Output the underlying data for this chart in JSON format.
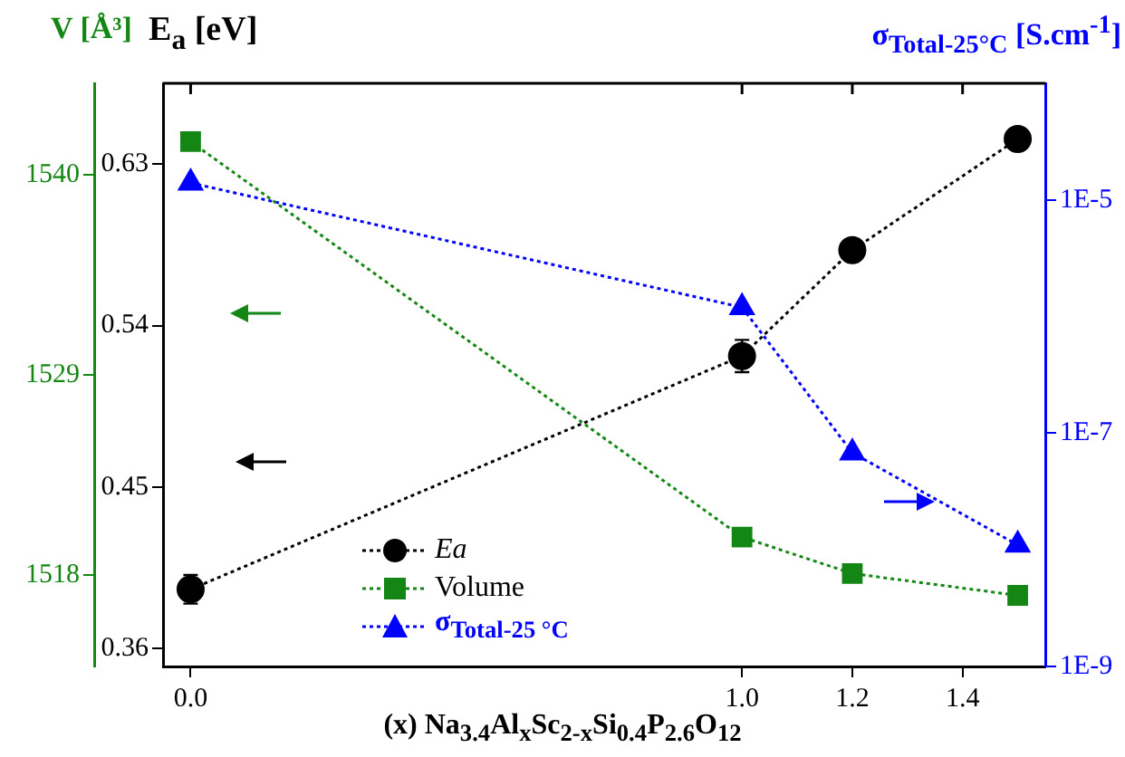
{
  "chart_data": {
    "type": "line",
    "ylabel": "E$_{a}$ [eV]",
    "y3label": "V [Å³]",
    "y2label": "σ$_{Total-25°C}$ [S.cm$^{-1}$]",
    "xlabel": "(x) Na$_{3.4}$Al$_{x}$Sc$_{2-x}$Si$_{0.4}$P$_{2.6}$O$_{12}$",
    "x": [
      0,
      1.0,
      1.2,
      1.5
    ],
    "xlim": [
      -0.05,
      1.55
    ],
    "xticks": [
      {
        "value": 0,
        "label": "0.0"
      },
      {
        "value": 1,
        "label": "1.0"
      },
      {
        "value": 1.2,
        "label": "1.2"
      },
      {
        "value": 1.4,
        "label": "1.4"
      }
    ],
    "ylim": [
      0.35,
      0.675
    ],
    "yticks": [
      0.36,
      0.45,
      0.54,
      0.63
    ],
    "y3lim": [
      1513,
      1545
    ],
    "y3ticks": [
      1518,
      1529,
      1540
    ],
    "y2lim": [
      1e-09,
      0.0001
    ],
    "y2ticks": [
      {
        "value": 1e-09,
        "label": "1E-9"
      },
      {
        "value": 1e-07,
        "label": "1E-7"
      },
      {
        "value": 1e-05,
        "label": "1E-5"
      }
    ],
    "log": "y2",
    "grid": false,
    "legend": "bottom",
    "line_style": "dotted",
    "series": [
      {
        "name": "Ea",
        "color": "#000000",
        "marker": "circle",
        "values": [
          0.393,
          0.523,
          0.582,
          0.644
        ],
        "errors": [
          0.008,
          0.009,
          null,
          null
        ]
      },
      {
        "name": "Volume",
        "color": "#138613",
        "marker": "square",
        "axis": "y3",
        "values": [
          1541.8,
          1520.1,
          1518.1,
          1516.9
        ]
      },
      {
        "name": "σ$_{Total-25 °C}$",
        "color": "#0000ff",
        "marker": "triangle",
        "axis": "y2",
        "values": [
          1.4e-05,
          1.2e-06,
          6.8e-08,
          1.1e-08
        ]
      }
    ]
  }
}
